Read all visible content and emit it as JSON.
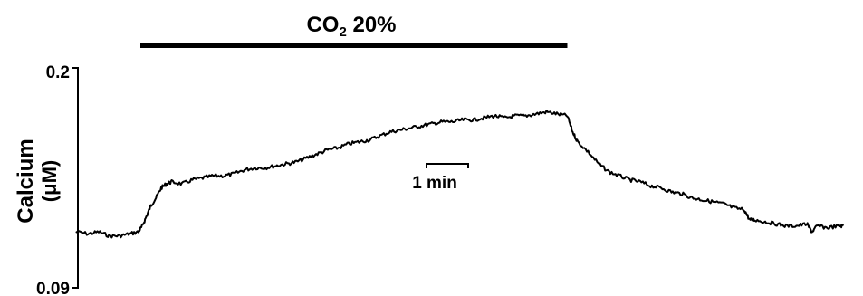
{
  "chart_data": {
    "type": "line",
    "title": "",
    "ylabel": "Calcium",
    "yunit": "(μM)",
    "ylim": [
      0.09,
      0.2
    ],
    "yticks": [
      "0.2",
      "0.09"
    ],
    "stimulus": {
      "label_main": "CO",
      "label_sub": "2",
      "label_rest": " 20%",
      "start_min": 0.6,
      "end_min": 4.7
    },
    "scalebar": {
      "label": "1 min",
      "duration_min": 0.4
    },
    "line_color": "#000000",
    "series": [
      {
        "x": [
          -0.02,
          0.1,
          0.2,
          0.3,
          0.4,
          0.5,
          0.58,
          0.62,
          0.66,
          0.7,
          0.75,
          0.8,
          0.85,
          0.9,
          1.0,
          1.1,
          1.2,
          1.3,
          1.4,
          1.5,
          1.6,
          1.7,
          1.8,
          1.9,
          2.0,
          2.1,
          2.2,
          2.3,
          2.4,
          2.5,
          2.6,
          2.7,
          2.8,
          2.9,
          3.0,
          3.1,
          3.2,
          3.3,
          3.4,
          3.5,
          3.6,
          3.7,
          3.8,
          3.9,
          4.0,
          4.1,
          4.2,
          4.3,
          4.4,
          4.5,
          4.6,
          4.7,
          4.75,
          4.8,
          4.9,
          5.0,
          5.1,
          5.2,
          5.3,
          5.4,
          5.5,
          5.6,
          5.7,
          5.8,
          5.9,
          6.0,
          6.1,
          6.2,
          6.3,
          6.4,
          6.45,
          6.5,
          6.6,
          6.7,
          6.8,
          6.9,
          7.0,
          7.05,
          7.1,
          7.2,
          7.3,
          7.35
        ],
        "y": [
          0.118,
          0.117,
          0.118,
          0.116,
          0.116,
          0.117,
          0.118,
          0.121,
          0.126,
          0.131,
          0.135,
          0.14,
          0.142,
          0.143,
          0.142,
          0.144,
          0.145,
          0.146,
          0.146,
          0.147,
          0.149,
          0.15,
          0.15,
          0.151,
          0.152,
          0.153,
          0.155,
          0.157,
          0.159,
          0.16,
          0.162,
          0.163,
          0.164,
          0.166,
          0.168,
          0.169,
          0.17,
          0.171,
          0.172,
          0.173,
          0.173,
          0.174,
          0.174,
          0.175,
          0.176,
          0.175,
          0.176,
          0.176,
          0.177,
          0.178,
          0.177,
          0.176,
          0.168,
          0.163,
          0.158,
          0.152,
          0.148,
          0.146,
          0.144,
          0.143,
          0.141,
          0.14,
          0.138,
          0.137,
          0.135,
          0.134,
          0.133,
          0.132,
          0.13,
          0.129,
          0.124,
          0.124,
          0.123,
          0.122,
          0.121,
          0.121,
          0.122,
          0.118,
          0.121,
          0.12,
          0.121,
          0.121
        ]
      }
    ]
  }
}
